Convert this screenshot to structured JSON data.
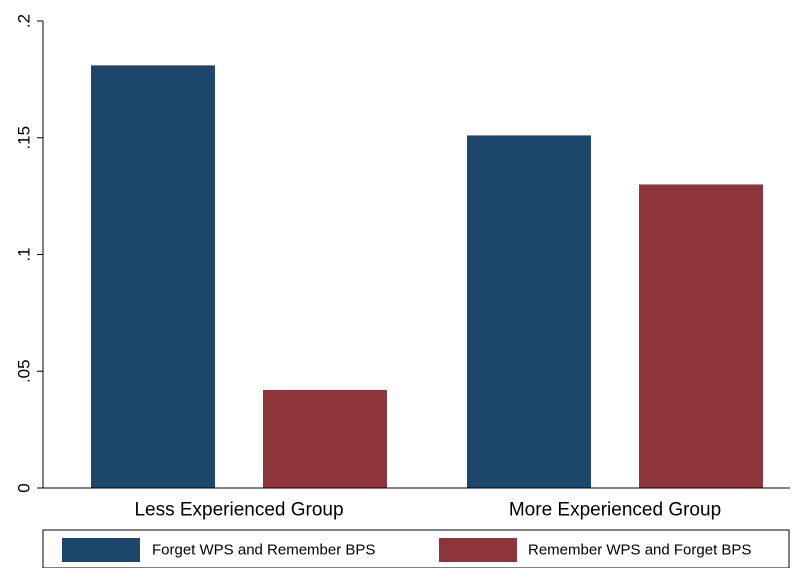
{
  "chart_data": {
    "type": "bar",
    "categories": [
      "Less Experienced Group",
      "More Experienced Group"
    ],
    "series": [
      {
        "name": "Forget WPS and Remember BPS",
        "color": "#1c466c",
        "values": [
          0.181,
          0.151
        ]
      },
      {
        "name": "Remember WPS and Forget BPS",
        "color": "#8e343b",
        "values": [
          0.042,
          0.13
        ]
      }
    ],
    "yticks": [
      {
        "value": 0,
        "label": "0"
      },
      {
        "value": 0.05,
        "label": ".05"
      },
      {
        "value": 0.1,
        "label": ".1"
      },
      {
        "value": 0.15,
        "label": ".15"
      },
      {
        "value": 0.2,
        "label": ".2"
      }
    ],
    "ylim": [
      0,
      0.2
    ],
    "grid": false,
    "legend": "bottom",
    "title": "",
    "xlabel": "",
    "ylabel": ""
  }
}
